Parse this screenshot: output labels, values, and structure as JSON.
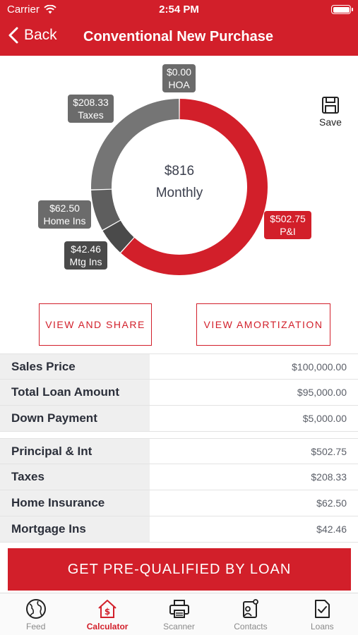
{
  "status_bar": {
    "carrier": "Carrier",
    "time": "2:54 PM"
  },
  "nav": {
    "back_label": "Back",
    "title": "Conventional New Purchase"
  },
  "chart_data": {
    "type": "pie",
    "center_value": "$816",
    "center_label": "Monthly",
    "slices": [
      {
        "label": "P&I",
        "value_text": "$502.75",
        "value": 502.75,
        "color": "#d21f2a"
      },
      {
        "label": "Mtg Ins",
        "value_text": "$42.46",
        "value": 42.46,
        "color": "#4a4a4a"
      },
      {
        "label": "Home Ins",
        "value_text": "$62.50",
        "value": 62.5,
        "color": "#5e5e5e"
      },
      {
        "label": "Taxes",
        "value_text": "$208.33",
        "value": 208.33,
        "color": "#757575"
      },
      {
        "label": "HOA",
        "value_text": "$0.00",
        "value": 0,
        "color": "#6b6b6b"
      }
    ]
  },
  "save_label": "Save",
  "buttons": {
    "view_share": "VIEW AND SHARE",
    "view_amort": "VIEW AMORTIZATION"
  },
  "loan_table": [
    {
      "label": "Sales Price",
      "value": "$100,000.00"
    },
    {
      "label": "Total Loan Amount",
      "value": "$95,000.00"
    },
    {
      "label": "Down Payment",
      "value": "$5,000.00"
    }
  ],
  "payment_table": [
    {
      "label": "Principal & Int",
      "value": "$502.75"
    },
    {
      "label": "Taxes",
      "value": "$208.33"
    },
    {
      "label": "Home Insurance",
      "value": "$62.50"
    },
    {
      "label": "Mortgage Ins",
      "value": "$42.46"
    }
  ],
  "cta_label": "GET PRE-QUALIFIED BY LOAN",
  "tabs": [
    {
      "label": "Feed",
      "icon": "globe-icon",
      "active": false
    },
    {
      "label": "Calculator",
      "icon": "house-dollar-icon",
      "active": true
    },
    {
      "label": "Scanner",
      "icon": "printer-icon",
      "active": false
    },
    {
      "label": "Contacts",
      "icon": "contacts-icon",
      "active": false
    },
    {
      "label": "Loans",
      "icon": "document-check-icon",
      "active": false
    }
  ],
  "colors": {
    "brand_red": "#d21f2a",
    "gray_dark": "#4a4a4a",
    "gray": "#6b6b6b"
  }
}
